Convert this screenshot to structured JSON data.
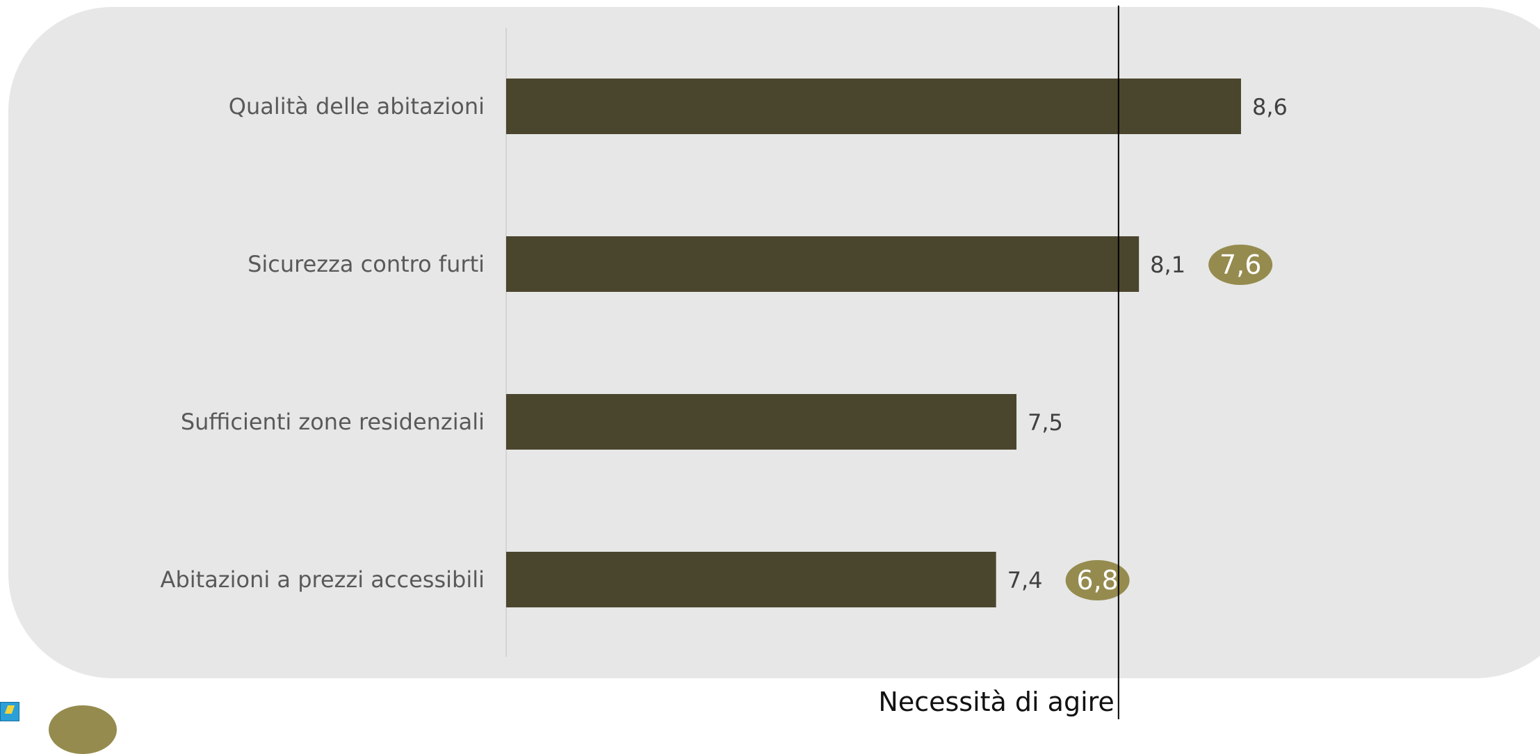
{
  "chart_data": {
    "type": "bar",
    "orientation": "horizontal",
    "categories": [
      "Qualità delle abitazioni",
      "Sicurezza contro furti",
      "Sufficienti zone residenziali",
      "Abitazioni a prezzi accessibili"
    ],
    "values": [
      8.6,
      8.1,
      7.5,
      7.4
    ],
    "value_labels": [
      "8,6",
      "8,1",
      "7,5",
      "7,4"
    ],
    "comparison_values": [
      null,
      7.6,
      null,
      6.8
    ],
    "comparison_labels": [
      "",
      "7,6",
      "",
      "6,8"
    ],
    "reference_line": {
      "value": 8.0,
      "label": "Necessità di agire"
    },
    "xlim": [
      5.0,
      9.0
    ],
    "grid": false,
    "colors": {
      "bar": "#4a452d",
      "bubble": "#958b4e",
      "panel": "#e6e7e6",
      "reference_line": "#000000"
    }
  }
}
